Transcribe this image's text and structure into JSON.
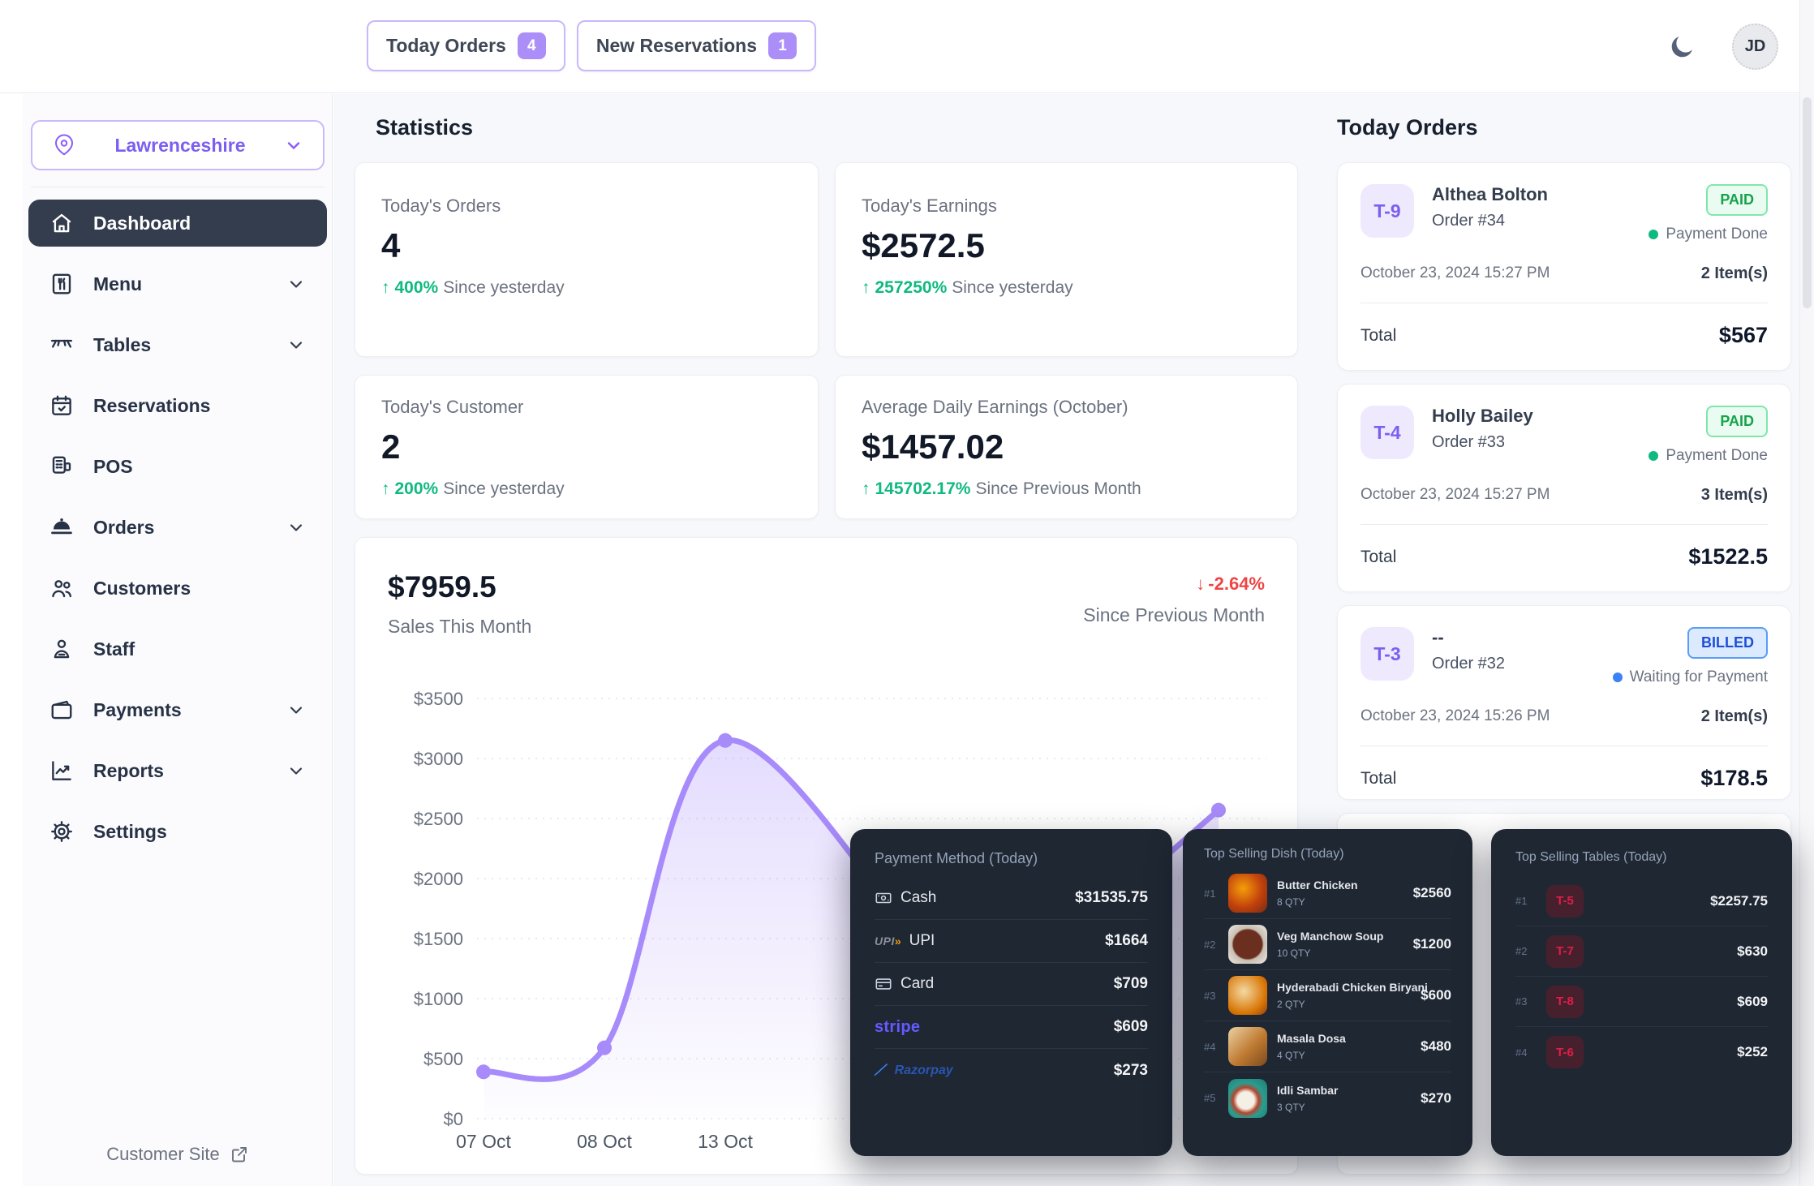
{
  "header": {
    "today_orders": {
      "label": "Today Orders",
      "count": "4"
    },
    "new_reservations": {
      "label": "New Reservations",
      "count": "1"
    },
    "avatar_initials": "JD"
  },
  "sidebar": {
    "location": "Lawrenceshire",
    "items": [
      {
        "label": "Dashboard",
        "active": true
      },
      {
        "label": "Menu",
        "chevron": true
      },
      {
        "label": "Tables",
        "chevron": true
      },
      {
        "label": "Reservations"
      },
      {
        "label": "POS"
      },
      {
        "label": "Orders",
        "chevron": true
      },
      {
        "label": "Customers"
      },
      {
        "label": "Staff"
      },
      {
        "label": "Payments",
        "chevron": true
      },
      {
        "label": "Reports",
        "chevron": true
      },
      {
        "label": "Settings"
      }
    ],
    "customer_site": "Customer Site"
  },
  "statistics": {
    "title": "Statistics",
    "cards": [
      {
        "label": "Today's Orders",
        "value": "4",
        "delta": "400%",
        "period": "Since yesterday",
        "direction": "up"
      },
      {
        "label": "Today's Earnings",
        "value": "$2572.5",
        "delta": "257250%",
        "period": "Since yesterday",
        "direction": "up"
      },
      {
        "label": "Today's Customer",
        "value": "2",
        "delta": "200%",
        "period": "Since yesterday",
        "direction": "up"
      },
      {
        "label": "Average Daily Earnings (October)",
        "value": "$1457.02",
        "delta": "145702.17%",
        "period": "Since Previous Month",
        "direction": "up"
      }
    ]
  },
  "sales": {
    "total": "$7959.5",
    "subtitle": "Sales This Month",
    "delta": "-2.64%",
    "delta_period": "Since Previous Month"
  },
  "chart_data": {
    "type": "area",
    "title": "Sales This Month",
    "categories": [
      "07 Oct",
      "08 Oct",
      "13 Oct"
    ],
    "values": [
      390,
      590,
      3150
    ],
    "trailing_visible_point": {
      "value": 2570,
      "label_obscured": true
    },
    "y_ticks": [
      "$0",
      "$500",
      "$1000",
      "$1500",
      "$2000",
      "$2500",
      "$3000",
      "$3500"
    ],
    "ylim": [
      0,
      3500
    ],
    "grid": true,
    "legend": "none",
    "line_color": "#a78bfa",
    "note": "middle portion of series and later x labels are obscured by overlay panels",
    "render_series": [
      {
        "x": 158,
        "value": 390
      },
      {
        "x": 307,
        "value": 590
      },
      {
        "x": 456,
        "value": 3150
      },
      {
        "x": 753,
        "value": 1100,
        "estimated": true
      },
      {
        "x": 893,
        "value": 1600,
        "estimated": true
      },
      {
        "x": 1064,
        "value": 2570
      }
    ]
  },
  "payment_methods": {
    "title": "Payment Method (Today)",
    "rows": [
      {
        "name": "Cash",
        "amount": "$31535.75"
      },
      {
        "name": "UPI",
        "amount": "$1664"
      },
      {
        "name": "Card",
        "amount": "$709"
      },
      {
        "name": "Stripe",
        "amount": "$609"
      },
      {
        "name": "Razorpay",
        "amount": "$273"
      }
    ]
  },
  "top_dishes": {
    "title": "Top Selling Dish (Today)",
    "rows": [
      {
        "rank": "#1",
        "name": "Butter Chicken",
        "qty": "8 QTY",
        "amount": "$2560"
      },
      {
        "rank": "#2",
        "name": "Veg Manchow Soup",
        "qty": "10 QTY",
        "amount": "$1200"
      },
      {
        "rank": "#3",
        "name": "Hyderabadi Chicken Biryani",
        "qty": "2 QTY",
        "amount": "$600"
      },
      {
        "rank": "#4",
        "name": "Masala Dosa",
        "qty": "4 QTY",
        "amount": "$480"
      },
      {
        "rank": "#5",
        "name": "Idli Sambar",
        "qty": "3 QTY",
        "amount": "$270"
      }
    ]
  },
  "top_tables": {
    "title": "Top Selling Tables (Today)",
    "rows": [
      {
        "rank": "#1",
        "table": "T-5",
        "amount": "$2257.75"
      },
      {
        "rank": "#2",
        "table": "T-7",
        "amount": "$630"
      },
      {
        "rank": "#3",
        "table": "T-8",
        "amount": "$609"
      },
      {
        "rank": "#4",
        "table": "T-6",
        "amount": "$252"
      }
    ]
  },
  "today_orders": {
    "title": "Today Orders",
    "orders": [
      {
        "table": "T-9",
        "customer": "Althea Bolton",
        "order_no": "Order #34",
        "status": "PAID",
        "status_note": "Payment Done",
        "datetime": "October 23, 2024 15:27 PM",
        "items": "2 Item(s)",
        "total_label": "Total",
        "total": "$567"
      },
      {
        "table": "T-4",
        "customer": "Holly Bailey",
        "order_no": "Order #33",
        "status": "PAID",
        "status_note": "Payment Done",
        "datetime": "October 23, 2024 15:27 PM",
        "items": "3 Item(s)",
        "total_label": "Total",
        "total": "$1522.5"
      },
      {
        "table": "T-3",
        "customer": "--",
        "order_no": "Order #32",
        "status": "BILLED",
        "status_note": "Waiting for Payment",
        "datetime": "October 23, 2024 15:26 PM",
        "items": "2 Item(s)",
        "total_label": "Total",
        "total": "$178.5"
      }
    ]
  },
  "icons": {
    "up_arrow": "↑",
    "down_arrow": "↓",
    "upi_accent": "»"
  },
  "colors": {
    "accent_purple": "#8b5cf6",
    "badge_purple": "#ab8ef8",
    "chart_line": "#a78bfa",
    "positive_green": "#10b981",
    "negative_red": "#ef4444",
    "info_blue": "#3b82f6",
    "paid_green": "#16a34a",
    "billed_blue": "#1d4ed8",
    "table_badge_red": "#e11d48",
    "panel_dark": "#1f2733",
    "active_nav": "#333d4d"
  }
}
